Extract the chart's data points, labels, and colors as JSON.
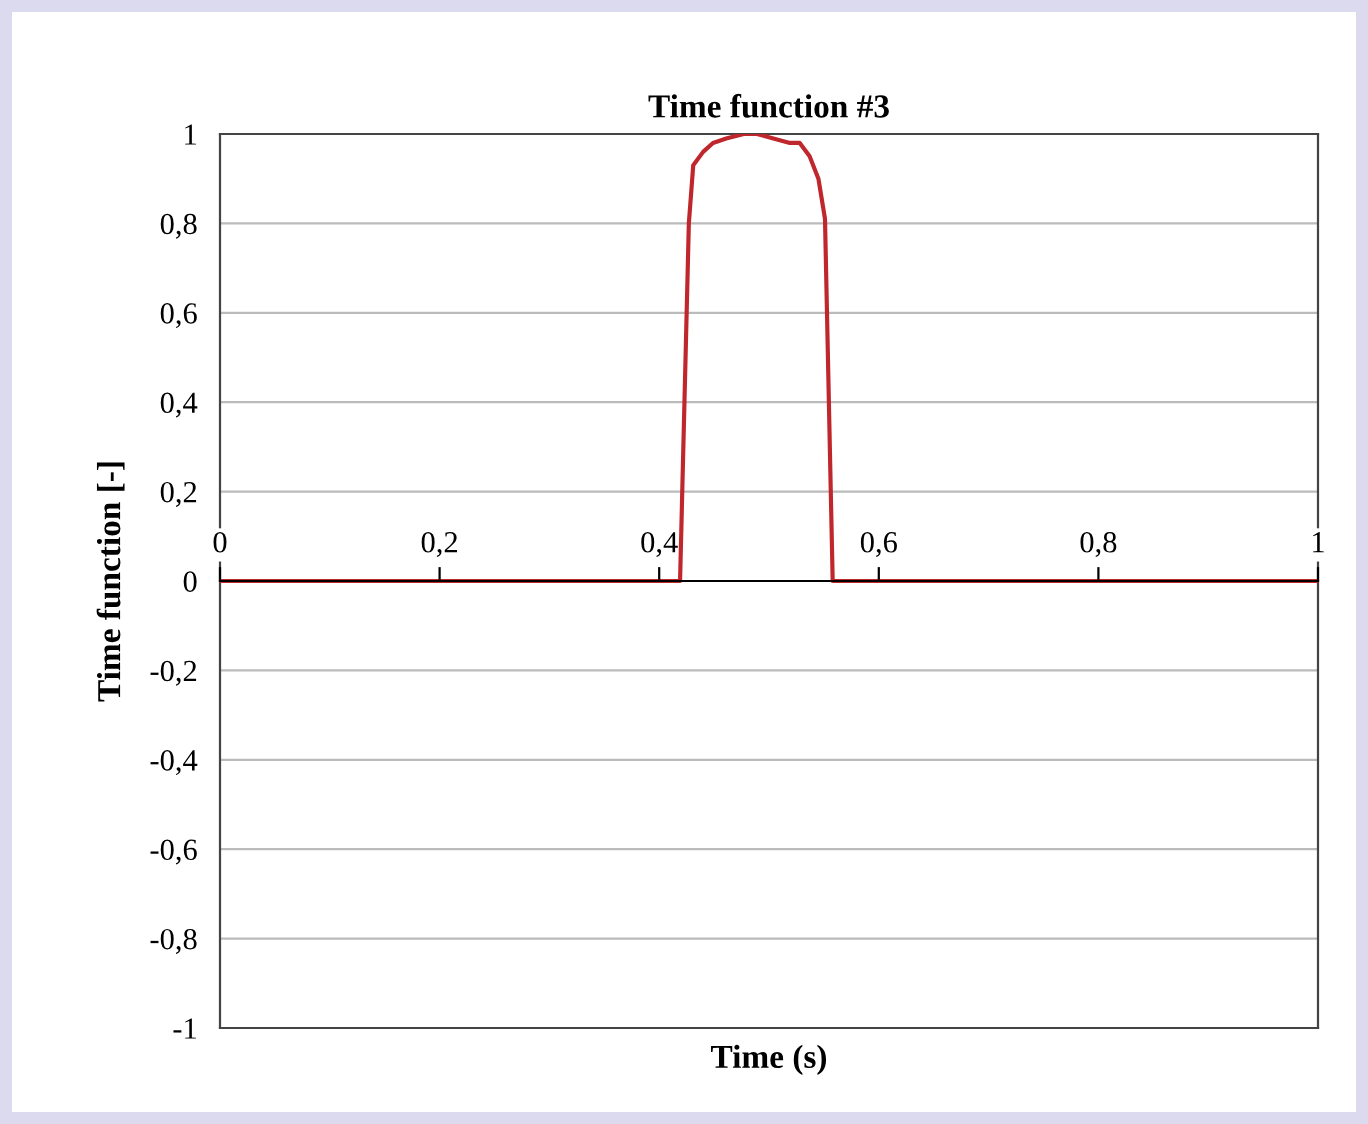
{
  "chart_data": {
    "type": "line",
    "title": "Time function #3",
    "xlabel": "Time (s)",
    "ylabel": "Time function [-]",
    "x": [
      0,
      0.419,
      0.427,
      0.431,
      0.44,
      0.449,
      0.461,
      0.477,
      0.489,
      0.504,
      0.519,
      0.528,
      0.537,
      0.545,
      0.551,
      0.558,
      1
    ],
    "series": [
      {
        "color": "#c0272d",
        "values": [
          0,
          0,
          0.8,
          0.93,
          0.96,
          0.98,
          0.99,
          1.0,
          1.0,
          0.99,
          0.98,
          0.98,
          0.95,
          0.9,
          0.81,
          0,
          0
        ]
      }
    ],
    "xlim": [
      0,
      1
    ],
    "ylim": [
      -1,
      1
    ],
    "xticks": [
      0,
      {
        "value": 0.2,
        "label": "0,2"
      },
      {
        "value": 0.4,
        "label": "0,4"
      },
      {
        "value": 0.6,
        "label": "0,6"
      },
      {
        "value": 0.8,
        "label": "0,8"
      },
      1
    ],
    "yticks": [
      -1,
      {
        "value": -0.8,
        "label": "-0,8"
      },
      {
        "value": -0.6,
        "label": "-0,6"
      },
      {
        "value": -0.4,
        "label": "-0,4"
      },
      {
        "value": -0.2,
        "label": "-0,2"
      },
      0,
      {
        "value": 0.2,
        "label": "0,2"
      },
      {
        "value": 0.4,
        "label": "0,4"
      },
      {
        "value": 0.6,
        "label": "0,6"
      },
      {
        "value": 0.8,
        "label": "0,8"
      },
      1
    ],
    "grid": "y",
    "marker": "none",
    "line_style": "solid"
  }
}
